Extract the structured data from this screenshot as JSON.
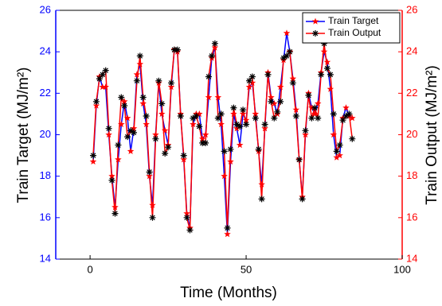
{
  "chart_data": {
    "type": "line",
    "xlabel": "Time (Months)",
    "ylabel": "Train Target (MJ/m²)",
    "y2label": "Train Output (MJ/m²)",
    "x": [
      1,
      2,
      3,
      4,
      5,
      6,
      7,
      8,
      9,
      10,
      11,
      12,
      13,
      14,
      15,
      16,
      17,
      18,
      19,
      20,
      21,
      22,
      23,
      24,
      25,
      26,
      27,
      28,
      29,
      30,
      31,
      32,
      33,
      34,
      35,
      36,
      37,
      38,
      39,
      40,
      41,
      42,
      43,
      44,
      45,
      46,
      47,
      48,
      49,
      50,
      51,
      52,
      53,
      54,
      55,
      56,
      57,
      58,
      59,
      60,
      61,
      62,
      63,
      64,
      65,
      66,
      67,
      68,
      69,
      70,
      71,
      72,
      73,
      74,
      75,
      76,
      77,
      78,
      79,
      80,
      81,
      82,
      83,
      84
    ],
    "series": [
      {
        "name": "Train Target",
        "color": "#0000ff",
        "marker": "star",
        "marker_color": "#ff0000",
        "values": [
          18.7,
          21.4,
          22.8,
          22.3,
          22.3,
          20.0,
          18.0,
          16.5,
          18.8,
          20.5,
          21.6,
          20.8,
          19.2,
          20.3,
          22.9,
          23.4,
          21.5,
          20.5,
          18.0,
          16.6,
          20.0,
          22.5,
          21.0,
          20.2,
          19.5,
          22.3,
          24.1,
          24.0,
          21.0,
          18.8,
          16.2,
          15.5,
          20.5,
          21.0,
          21.0,
          19.8,
          20.0,
          21.8,
          23.7,
          24.2,
          21.8,
          20.5,
          18.0,
          15.2,
          18.7,
          21.0,
          20.3,
          19.5,
          21.0,
          20.7,
          22.3,
          22.5,
          21.0,
          19.2,
          17.6,
          20.3,
          23.0,
          21.8,
          21.5,
          21.0,
          22.3,
          23.6,
          24.9,
          24.0,
          22.7,
          21.2,
          18.8,
          17.0,
          20.0,
          22.0,
          21.3,
          21.0,
          21.5,
          23.0,
          24.0,
          23.5,
          22.2,
          20.0,
          18.9,
          19.0,
          20.8,
          21.3,
          20.9,
          20.8
        ]
      },
      {
        "name": "Train Output",
        "color": "#ff0000",
        "marker": "asterisk",
        "marker_color": "#000000",
        "values": [
          19.0,
          21.6,
          22.7,
          22.9,
          23.1,
          20.3,
          17.8,
          16.2,
          19.5,
          21.8,
          21.4,
          19.9,
          20.2,
          20.1,
          22.6,
          23.8,
          21.8,
          20.9,
          18.2,
          16.0,
          19.8,
          22.6,
          21.5,
          19.1,
          19.4,
          22.5,
          24.1,
          24.1,
          20.9,
          19.0,
          16.0,
          15.4,
          20.8,
          20.9,
          20.4,
          19.6,
          19.6,
          22.8,
          23.8,
          24.4,
          20.8,
          21.0,
          19.2,
          15.5,
          19.3,
          21.3,
          20.5,
          20.4,
          21.2,
          20.5,
          22.6,
          22.8,
          20.8,
          19.3,
          16.9,
          20.5,
          22.9,
          21.6,
          20.8,
          21.1,
          21.6,
          23.7,
          23.8,
          24.0,
          22.5,
          20.9,
          18.8,
          16.9,
          20.2,
          21.9,
          20.8,
          21.3,
          20.8,
          22.9,
          24.4,
          23.2,
          22.9,
          21.0,
          19.2,
          19.5,
          20.7,
          20.9,
          21.0,
          19.8
        ]
      }
    ],
    "xlim": [
      -11,
      100
    ],
    "xticks": [
      0,
      50,
      100
    ],
    "ylim": [
      14,
      26
    ],
    "yticks": [
      14,
      16,
      18,
      20,
      22,
      24,
      26
    ],
    "y_axis_color": "#0000ff",
    "y2lim": [
      14,
      26
    ],
    "y2ticks": [
      14,
      16,
      18,
      20,
      22,
      24,
      26
    ],
    "y2_axis_color": "#ff0000",
    "legend": "upper right",
    "grid": false
  }
}
